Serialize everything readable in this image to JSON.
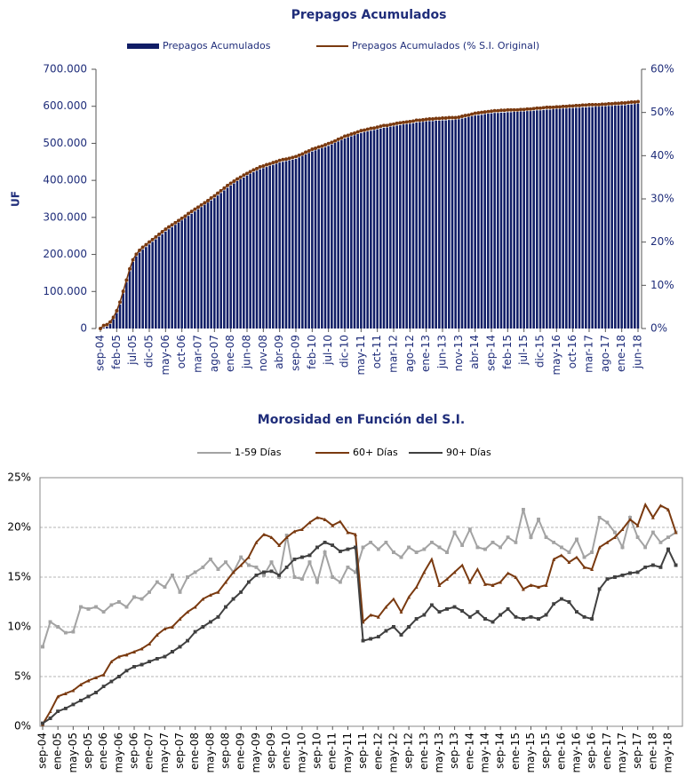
{
  "chart_data": [
    {
      "type": "bar",
      "title": "Prepagos Acumulados",
      "ylabel": "UF",
      "grid": false,
      "legend": "top",
      "categories": [
        "sep-04",
        null,
        null,
        null,
        null,
        "feb-05",
        null,
        null,
        null,
        null,
        "jul-05",
        null,
        null,
        null,
        null,
        "dic-05",
        null,
        null,
        null,
        null,
        "may-06",
        null,
        null,
        null,
        null,
        "oct-06",
        null,
        null,
        null,
        null,
        "mar-07",
        null,
        null,
        null,
        null,
        "ago-07",
        null,
        null,
        null,
        null,
        "ene-08",
        null,
        null,
        null,
        null,
        "jun-08",
        null,
        null,
        null,
        null,
        "nov-08",
        null,
        null,
        null,
        null,
        "abr-09",
        null,
        null,
        null,
        null,
        "sep-09",
        null,
        null,
        null,
        null,
        "feb-10",
        null,
        null,
        null,
        null,
        "jul-10",
        null,
        null,
        null,
        null,
        "dic-10",
        null,
        null,
        null,
        null,
        "may-11",
        null,
        null,
        null,
        null,
        "oct-11",
        null,
        null,
        null,
        null,
        "mar-12",
        null,
        null,
        null,
        null,
        "ago-12",
        null,
        null,
        null,
        null,
        "ene-13",
        null,
        null,
        null,
        null,
        "jun-13",
        null,
        null,
        null,
        null,
        "nov-13",
        null,
        null,
        null,
        null,
        "abr-14",
        null,
        null,
        null,
        null,
        "sep-14",
        null,
        null,
        null,
        null,
        "feb-15",
        null,
        null,
        null,
        null,
        "jul-15",
        null,
        null,
        null,
        null,
        "dic-15",
        null,
        null,
        null,
        null,
        "may-16",
        null,
        null,
        null,
        null,
        "oct-16",
        null,
        null,
        null,
        null,
        "mar-17",
        null,
        null,
        null,
        null,
        "ago-17",
        null,
        null,
        null,
        null,
        "ene-18",
        null,
        null,
        null,
        null,
        "jun-18"
      ],
      "ylim": [
        0,
        700000
      ],
      "yticks": [
        0,
        {
          "value": 100000,
          "label": "100.000"
        },
        {
          "value": 200000,
          "label": "200.000"
        },
        {
          "value": 300000,
          "label": "300.000"
        },
        {
          "value": 400000,
          "label": "400.000"
        },
        {
          "value": 500000,
          "label": "500.000"
        },
        {
          "value": 600000,
          "label": "600.000"
        },
        {
          "value": 700000,
          "label": "700.000"
        }
      ],
      "y2lim": [
        0,
        60
      ],
      "y2ticks": [
        {
          "value": 0,
          "label": "0%"
        },
        {
          "value": 10,
          "label": "10%"
        },
        {
          "value": 20,
          "label": "20%"
        },
        {
          "value": 30,
          "label": "30%"
        },
        {
          "value": 40,
          "label": "40%"
        },
        {
          "value": 50,
          "label": "50%"
        },
        {
          "value": 60,
          "label": "60%"
        }
      ],
      "series": [
        {
          "name": "Prepagos Acumulados",
          "type": "bar",
          "color": "#101d66",
          "values": [
            0,
            2000,
            5000,
            12000,
            25000,
            42000,
            65000,
            95000,
            125000,
            155000,
            180000,
            195000,
            205000,
            213000,
            220000,
            227000,
            234000,
            241000,
            248000,
            255000,
            262000,
            268000,
            274000,
            280000,
            286000,
            292000,
            298000,
            304000,
            310000,
            316000,
            322000,
            328000,
            334000,
            340000,
            346000,
            352000,
            359000,
            366000,
            373000,
            380000,
            386000,
            392000,
            398000,
            403000,
            408000,
            413000,
            418000,
            422000,
            426000,
            430000,
            433000,
            436000,
            439000,
            442000,
            445000,
            448000,
            450000,
            452000,
            454000,
            456000,
            458000,
            462000,
            466000,
            470000,
            474000,
            478000,
            481000,
            484000,
            487000,
            490000,
            493000,
            497000,
            501000,
            505000,
            509000,
            513000,
            516000,
            519000,
            522000,
            525000,
            528000,
            530000,
            532000,
            534000,
            536000,
            538000,
            540000,
            542000,
            543000,
            545000,
            546000,
            548000,
            549000,
            551000,
            552000,
            553000,
            554000,
            556000,
            557000,
            558000,
            559000,
            560000,
            560000,
            561000,
            561000,
            562000,
            562000,
            563000,
            563000,
            564000,
            565000,
            567000,
            569000,
            571000,
            573000,
            575000,
            576000,
            577000,
            579000,
            580000,
            581000,
            582000,
            582000,
            583000,
            583000,
            584000,
            584000,
            585000,
            585000,
            586000,
            586000,
            587000,
            587000,
            588000,
            589000,
            589000,
            590000,
            591000,
            591000,
            592000,
            593000,
            593000,
            594000,
            594000,
            595000,
            595000,
            596000,
            596000,
            597000,
            597000,
            598000,
            598000,
            599000,
            599000,
            600000,
            600000,
            601000,
            601000,
            602000,
            602000,
            603000,
            603000,
            604000,
            605000,
            606000,
            607000
          ]
        },
        {
          "name": "Prepagos Acumulados (% S.I. Original)",
          "type": "line",
          "axis": "y2",
          "color": "#7a3a10",
          "values": [
            0,
            0.7,
            0.9,
            1.5,
            2.6,
            4.1,
            6.1,
            8.6,
            11.2,
            13.8,
            15.9,
            17.2,
            18.1,
            18.8,
            19.4,
            20.0,
            20.6,
            21.2,
            21.8,
            22.4,
            23.0,
            23.5,
            24.0,
            24.5,
            25.0,
            25.5,
            26.0,
            26.6,
            27.1,
            27.6,
            28.1,
            28.6,
            29.1,
            29.6,
            30.2,
            30.7,
            31.3,
            31.9,
            32.5,
            33.1,
            33.6,
            34.1,
            34.6,
            35.0,
            35.5,
            35.9,
            36.3,
            36.7,
            37.0,
            37.4,
            37.6,
            37.9,
            38.1,
            38.4,
            38.6,
            38.9,
            39.1,
            39.2,
            39.4,
            39.6,
            39.8,
            40.1,
            40.4,
            40.8,
            41.1,
            41.5,
            41.7,
            42.0,
            42.2,
            42.5,
            42.8,
            43.1,
            43.4,
            43.8,
            44.1,
            44.5,
            44.7,
            45.0,
            45.2,
            45.5,
            45.8,
            45.9,
            46.1,
            46.3,
            46.4,
            46.6,
            46.8,
            47.0,
            47.0,
            47.2,
            47.3,
            47.5,
            47.6,
            47.7,
            47.8,
            47.9,
            48.0,
            48.2,
            48.2,
            48.3,
            48.4,
            48.5,
            48.5,
            48.6,
            48.6,
            48.7,
            48.7,
            48.8,
            48.8,
            48.8,
            48.9,
            49.1,
            49.3,
            49.4,
            49.6,
            49.8,
            49.9,
            50.0,
            50.1,
            50.2,
            50.3,
            50.4,
            50.4,
            50.5,
            50.5,
            50.6,
            50.6,
            50.6,
            50.6,
            50.7,
            50.7,
            50.8,
            50.8,
            50.9,
            51.0,
            51.0,
            51.1,
            51.2,
            51.2,
            51.2,
            51.3,
            51.3,
            51.4,
            51.4,
            51.5,
            51.5,
            51.6,
            51.6,
            51.7,
            51.7,
            51.8,
            51.8,
            51.8,
            51.8,
            51.9,
            51.9,
            52.0,
            52.0,
            52.1,
            52.1,
            52.2,
            52.2,
            52.3,
            52.4,
            52.4,
            52.5
          ]
        }
      ]
    },
    {
      "type": "line",
      "title": "Morosidad en Función del S.I.",
      "grid": true,
      "legend": "top",
      "categories": [
        "sep-04",
        null,
        "ene-05",
        null,
        "may-05",
        null,
        "sep-05",
        null,
        "ene-06",
        null,
        "may-06",
        null,
        "sep-06",
        null,
        "ene-07",
        null,
        "may-07",
        null,
        "sep-07",
        null,
        "ene-08",
        null,
        "may-08",
        null,
        "sep-08",
        null,
        "ene-09",
        null,
        "may-09",
        null,
        "sep-09",
        null,
        "ene-10",
        null,
        "may-10",
        null,
        "sep-10",
        null,
        "ene-11",
        null,
        "may-11",
        null,
        "sep-11",
        null,
        "ene-12",
        null,
        "may-12",
        null,
        "sep-12",
        null,
        "ene-13",
        null,
        "may-13",
        null,
        "sep-13",
        null,
        "ene-14",
        null,
        "may-14",
        null,
        "sep-14",
        null,
        "ene-15",
        null,
        "may-15",
        null,
        "sep-15",
        null,
        "ene-16",
        null,
        "may-16",
        null,
        "sep-16",
        null,
        "ene-17",
        null,
        "may-17",
        null,
        "sep-17",
        null,
        "ene-18",
        null,
        "may-18",
        null
      ],
      "ylim": [
        0,
        25
      ],
      "yticks": [
        {
          "value": 0,
          "label": "0%"
        },
        {
          "value": 5,
          "label": "5%"
        },
        {
          "value": 10,
          "label": "10%"
        },
        {
          "value": 15,
          "label": "15%"
        },
        {
          "value": 20,
          "label": "20%"
        },
        {
          "value": 25,
          "label": "25%"
        }
      ],
      "series": [
        {
          "name": "1-59 Días",
          "color": "#a3a3a3",
          "marker": "square",
          "values": [
            8.0,
            10.5,
            10.0,
            9.4,
            9.5,
            12.0,
            11.8,
            12.0,
            11.5,
            12.2,
            12.5,
            12.0,
            13.0,
            12.8,
            13.5,
            14.5,
            14.0,
            15.2,
            13.5,
            15.0,
            15.5,
            16.0,
            16.8,
            15.8,
            16.5,
            15.5,
            17.0,
            16.2,
            16.0,
            15.2,
            16.5,
            15.0,
            19.2,
            15.0,
            14.8,
            16.5,
            14.5,
            17.5,
            15.0,
            14.5,
            16.0,
            15.5,
            18.0,
            18.5,
            17.8,
            18.5,
            17.5,
            17.0,
            18.0,
            17.5,
            17.8,
            18.5,
            18.0,
            17.5,
            19.5,
            18.2,
            19.8,
            18.0,
            17.8,
            18.5,
            18.0,
            19.0,
            18.5,
            21.8,
            19.0,
            20.8,
            19.0,
            18.5,
            18.0,
            17.5,
            18.8,
            17.0,
            17.5,
            21.0,
            20.5,
            19.5,
            18.0,
            21.0,
            19.0,
            18.0,
            19.5,
            18.5,
            19.0,
            19.5
          ]
        },
        {
          "name": "60+ Días",
          "color": "#7a3a10",
          "marker": "triangle",
          "values": [
            0.2,
            1.5,
            3.0,
            3.3,
            3.6,
            4.2,
            4.6,
            4.9,
            5.2,
            6.5,
            7.0,
            7.2,
            7.5,
            7.8,
            8.3,
            9.2,
            9.8,
            10.0,
            10.8,
            11.5,
            12.0,
            12.8,
            13.2,
            13.5,
            14.5,
            15.5,
            16.2,
            17.0,
            18.5,
            19.3,
            19.0,
            18.2,
            19.0,
            19.6,
            19.8,
            20.5,
            21.0,
            20.8,
            20.2,
            20.6,
            19.5,
            19.3,
            10.5,
            11.2,
            11.0,
            12.0,
            12.8,
            11.5,
            13.0,
            14.0,
            15.5,
            16.8,
            14.2,
            14.8,
            15.5,
            16.2,
            14.5,
            15.8,
            14.3,
            14.2,
            14.5,
            15.4,
            15.0,
            13.8,
            14.2,
            14.0,
            14.2,
            16.8,
            17.2,
            16.5,
            17.0,
            16.0,
            15.8,
            18.0,
            18.5,
            19.0,
            19.8,
            20.8,
            20.2,
            22.3,
            21.0,
            22.2,
            21.8,
            19.5
          ]
        },
        {
          "name": "90+ Días",
          "color": "#404040",
          "marker": "square",
          "values": [
            0.3,
            0.8,
            1.5,
            1.8,
            2.2,
            2.6,
            3.0,
            3.4,
            4.0,
            4.5,
            5.0,
            5.6,
            6.0,
            6.2,
            6.5,
            6.8,
            7.0,
            7.5,
            8.0,
            8.6,
            9.5,
            10.0,
            10.5,
            11.0,
            12.0,
            12.8,
            13.5,
            14.5,
            15.2,
            15.5,
            15.6,
            15.2,
            16.0,
            16.8,
            17.0,
            17.2,
            18.0,
            18.5,
            18.2,
            17.6,
            17.8,
            18.0,
            8.6,
            8.8,
            9.0,
            9.6,
            10.0,
            9.2,
            10.0,
            10.8,
            11.2,
            12.2,
            11.5,
            11.8,
            12.0,
            11.6,
            11.0,
            11.5,
            10.8,
            10.5,
            11.2,
            11.8,
            11.0,
            10.8,
            11.0,
            10.8,
            11.2,
            12.3,
            12.8,
            12.5,
            11.5,
            11.0,
            10.8,
            13.8,
            14.8,
            15.0,
            15.2,
            15.4,
            15.5,
            16.0,
            16.2,
            16.0,
            17.8,
            16.2
          ]
        }
      ]
    }
  ]
}
